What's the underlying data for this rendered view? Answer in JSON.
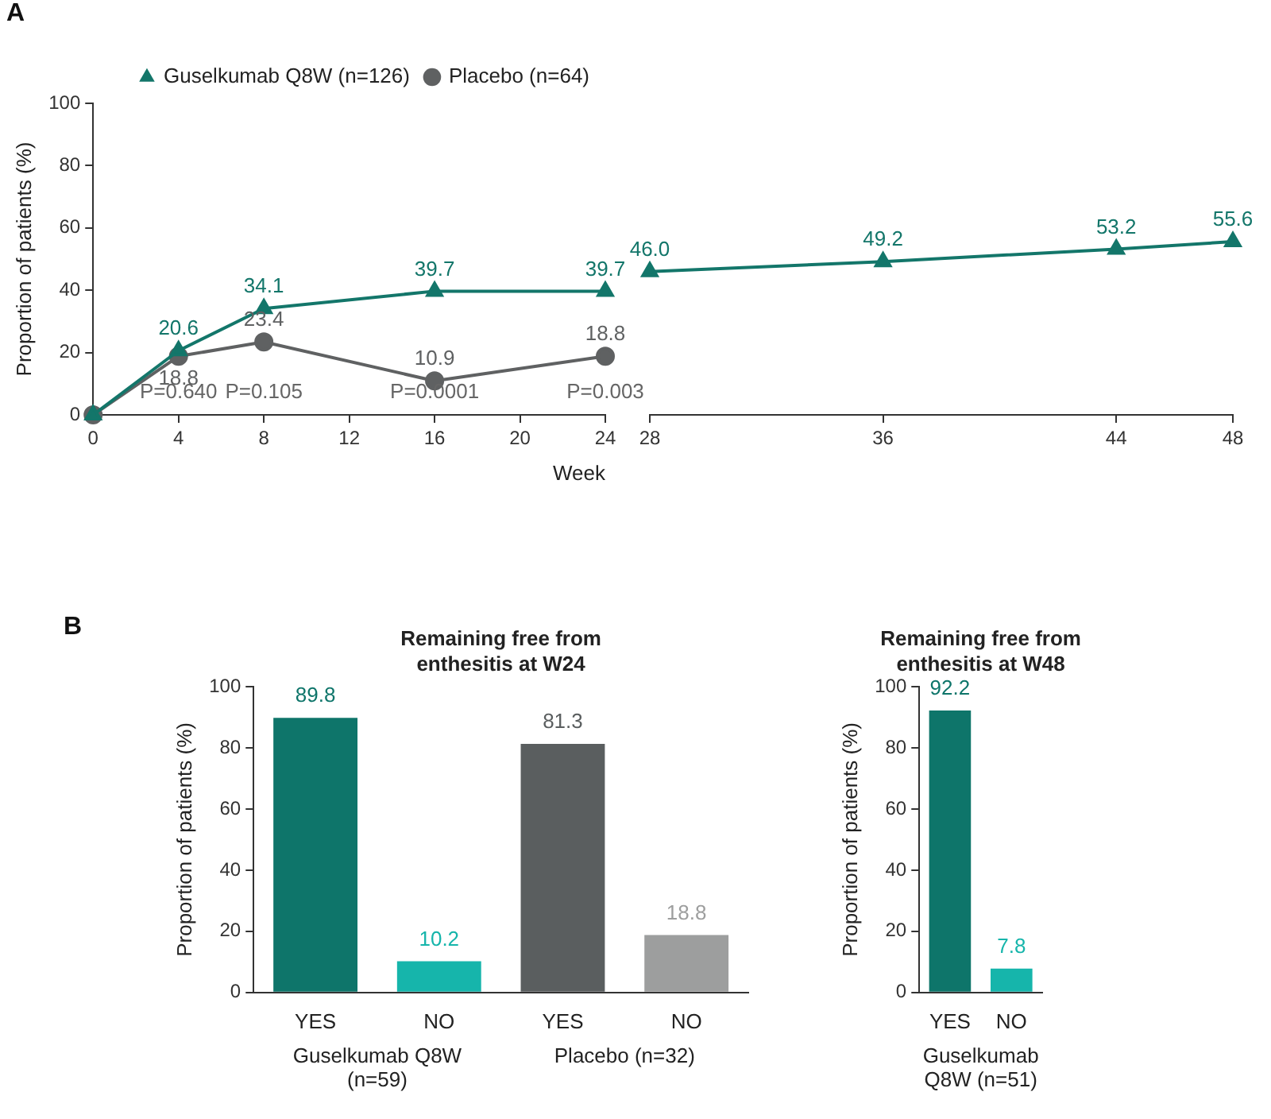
{
  "chart_data": [
    {
      "type": "line",
      "title": "A",
      "ylabel": "Proportion of patients (%)",
      "xlabel": "Week",
      "xlim": [
        0,
        24
      ],
      "xticks": [
        0,
        4,
        8,
        12,
        16,
        20,
        24
      ],
      "ylim": [
        0,
        100
      ],
      "yticks": [
        0,
        20,
        40,
        60,
        80,
        100
      ],
      "grid": false,
      "legend": "top",
      "x": [
        0,
        4,
        8,
        16,
        24
      ],
      "series": [
        {
          "name": "Guselkumab Q8W (n=126)",
          "color": "#13766a",
          "marker": "triangle",
          "values": [
            0,
            20.6,
            34.1,
            39.7,
            39.7
          ],
          "value_labels": [
            null,
            "20.6",
            "34.1",
            "39.7",
            "39.7"
          ]
        },
        {
          "name": "Placebo (n=64)",
          "color": "#5f6162",
          "marker": "circle",
          "values": [
            0,
            18.8,
            23.4,
            10.9,
            18.8
          ],
          "value_labels": [
            null,
            "18.8",
            "23.4",
            "10.9",
            "18.8"
          ]
        }
      ],
      "annotations": [
        "P=0.640",
        "P=0.105",
        "P=0.0001",
        "P=0.003"
      ]
    },
    {
      "type": "line",
      "xlim": [
        28,
        48
      ],
      "xticks": [
        28,
        36,
        44,
        48
      ],
      "ylim": [
        0,
        100
      ],
      "tick_labels": "x",
      "grid": false,
      "x": [
        28,
        36,
        44,
        48
      ],
      "series": [
        {
          "color": "#13766a",
          "marker": "triangle",
          "values": [
            46.0,
            49.2,
            53.2,
            55.6
          ],
          "value_labels": [
            "46.0",
            "49.2",
            "53.2",
            "55.6"
          ]
        }
      ]
    },
    {
      "type": "bar",
      "title": "B",
      "subtitle": "Remaining free from enthesitis at W24",
      "ylabel": "Proportion of patients (%)",
      "ylim": [
        0,
        100
      ],
      "yticks": [
        0,
        20,
        40,
        60,
        80,
        100
      ],
      "grid": false,
      "data_labels": true,
      "categories": [
        "YES",
        "NO",
        "YES",
        "NO"
      ],
      "values": [
        89.8,
        10.2,
        81.3,
        18.8
      ],
      "colors": [
        "#0e756a",
        "#16b5ab",
        "#5a5e5f",
        "#9d9e9e"
      ],
      "annotations": [
        "Guselkumab Q8W (n=59)",
        "Placebo (n=32)"
      ]
    },
    {
      "type": "bar",
      "subtitle": "Remaining free from enthesitis at W48",
      "ylabel": "Proportion of patients (%)",
      "ylim": [
        0,
        100
      ],
      "yticks": [
        0,
        20,
        40,
        60,
        80,
        100
      ],
      "grid": false,
      "data_labels": true,
      "categories": [
        "YES",
        "NO"
      ],
      "values": [
        92.2,
        7.8
      ],
      "colors": [
        "#0e756a",
        "#16b5ab"
      ],
      "annotations": [
        "Guselkumab Q8W (n=51)"
      ]
    }
  ]
}
